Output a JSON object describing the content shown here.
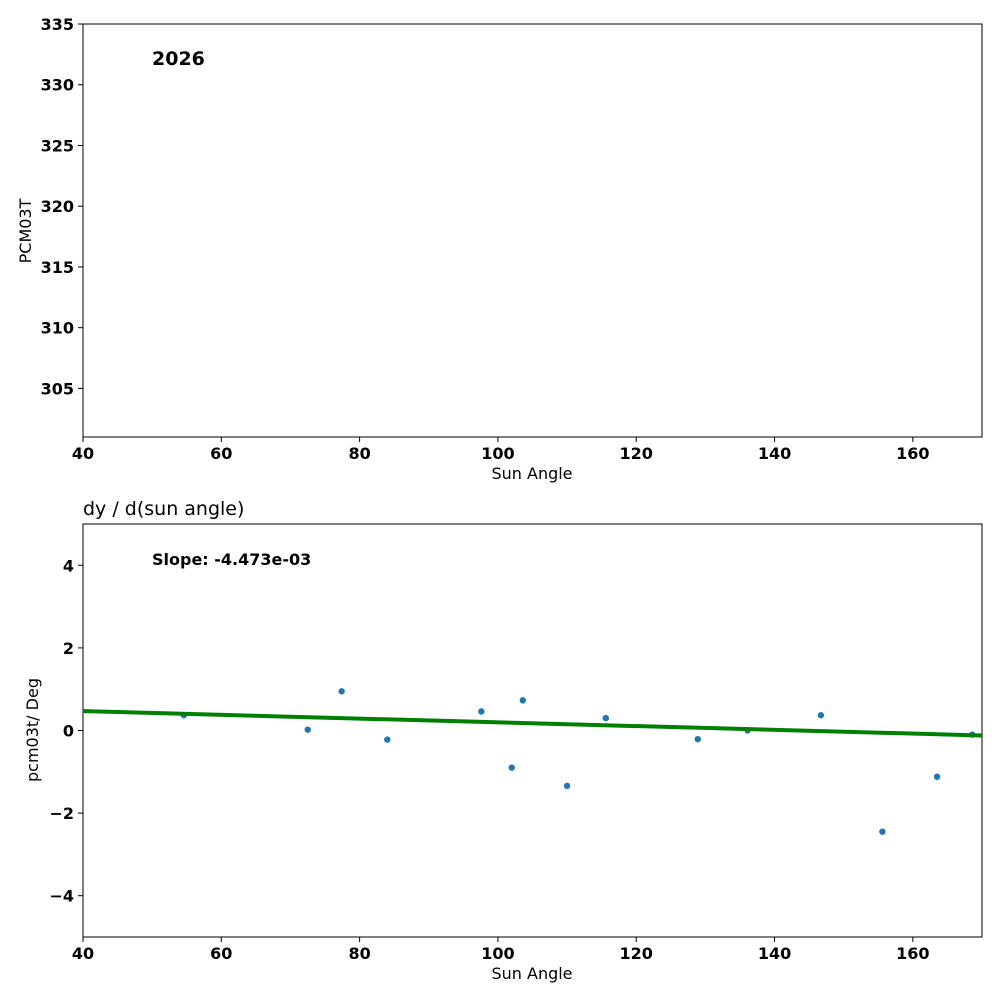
{
  "chart_data": [
    {
      "type": "scatter",
      "title": "",
      "annotation": "2026",
      "xlabel": "Sun Angle",
      "ylabel": "PCM03T",
      "xlim": [
        40,
        170
      ],
      "ylim": [
        301,
        335
      ],
      "xticks": [
        40,
        60,
        80,
        100,
        120,
        140,
        160
      ],
      "yticks": [
        305,
        310,
        315,
        320,
        325,
        330,
        335
      ],
      "points": []
    },
    {
      "type": "scatter",
      "title": "dy / d(sun angle)",
      "annotation": "Slope: -4.473e-03",
      "xlabel": "Sun Angle",
      "ylabel": "pcm03t/ Deg",
      "xlim": [
        40,
        170
      ],
      "ylim": [
        -5,
        5
      ],
      "xticks": [
        40,
        60,
        80,
        100,
        120,
        140,
        160
      ],
      "yticks": [
        -4,
        -2,
        0,
        2,
        4
      ],
      "ytick_labels": [
        "−4",
        "−2",
        "0",
        "2",
        "4"
      ],
      "points": [
        {
          "x": 54.6,
          "y": 0.37
        },
        {
          "x": 72.5,
          "y": 0.02
        },
        {
          "x": 77.4,
          "y": 0.95
        },
        {
          "x": 84.0,
          "y": -0.22
        },
        {
          "x": 97.6,
          "y": 0.46
        },
        {
          "x": 102.0,
          "y": -0.9
        },
        {
          "x": 103.6,
          "y": 0.73
        },
        {
          "x": 110.0,
          "y": -1.34
        },
        {
          "x": 115.6,
          "y": 0.3
        },
        {
          "x": 128.9,
          "y": -0.21
        },
        {
          "x": 136.1,
          "y": 0.0
        },
        {
          "x": 146.7,
          "y": 0.37
        },
        {
          "x": 155.6,
          "y": -2.45
        },
        {
          "x": 163.5,
          "y": -1.12
        },
        {
          "x": 168.6,
          "y": -0.1
        }
      ],
      "fit_line": {
        "x": [
          40,
          170
        ],
        "y": [
          0.47,
          -0.12
        ]
      },
      "colors": {
        "points": "#1f77b4",
        "fit": "#008000"
      }
    }
  ]
}
